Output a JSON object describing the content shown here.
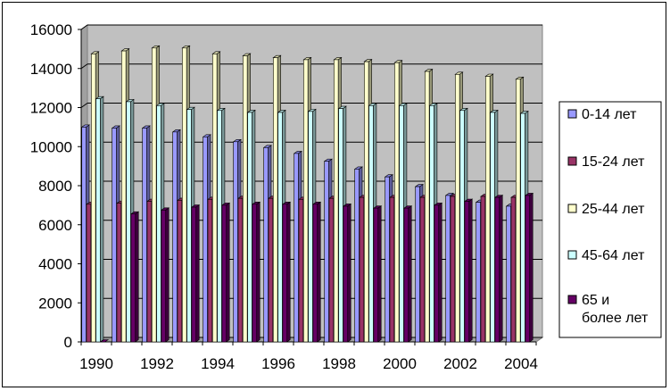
{
  "chart_data": {
    "type": "bar",
    "style": "3d-clustered-column",
    "categories": [
      "1990",
      "1991",
      "1992",
      "1993",
      "1994",
      "1995",
      "1996",
      "1997",
      "1998",
      "1999",
      "2000",
      "2001",
      "2002",
      "2003",
      "2004"
    ],
    "x_tick_labels": [
      "1990",
      "1992",
      "1994",
      "1996",
      "1998",
      "2000",
      "2002",
      "2004"
    ],
    "y_tick_labels": [
      "0",
      "2000",
      "4000",
      "6000",
      "8000",
      "10000",
      "12000",
      "14000",
      "16000"
    ],
    "ylim": [
      0,
      16000
    ],
    "grid": true,
    "legend_position": "right",
    "title": "",
    "xlabel": "",
    "ylabel": "",
    "series": [
      {
        "name": "0-14 лет",
        "color": "#9999ff",
        "values": [
          11000,
          10950,
          10950,
          10750,
          10500,
          10250,
          9950,
          9650,
          9250,
          8850,
          8450,
          7950,
          7500,
          7150,
          6950
        ]
      },
      {
        "name": "15-24 лет",
        "color": "#993366",
        "values": [
          7050,
          7100,
          7200,
          7250,
          7300,
          7350,
          7350,
          7300,
          7350,
          7400,
          7400,
          7400,
          7450,
          7450,
          7400
        ]
      },
      {
        "name": "25-44 лет",
        "color": "#ffffcc",
        "values": [
          14750,
          14900,
          15050,
          15050,
          14750,
          14650,
          14550,
          14450,
          14450,
          14350,
          14300,
          13850,
          13700,
          13600,
          13450
        ]
      },
      {
        "name": "45-64 лет",
        "color": "#ccffff",
        "values": [
          12450,
          12300,
          12100,
          11900,
          11850,
          11750,
          11750,
          11800,
          11950,
          12100,
          12100,
          12100,
          11850,
          11750,
          11700
        ]
      },
      {
        "name": "65 и\nболее лет",
        "legend_lines": [
          "65 и",
          "более лет"
        ],
        "color": "#660066",
        "values": [
          0,
          6550,
          6750,
          6900,
          7000,
          7050,
          7050,
          7050,
          6950,
          6850,
          6850,
          7000,
          7200,
          7400,
          7500
        ]
      }
    ]
  }
}
